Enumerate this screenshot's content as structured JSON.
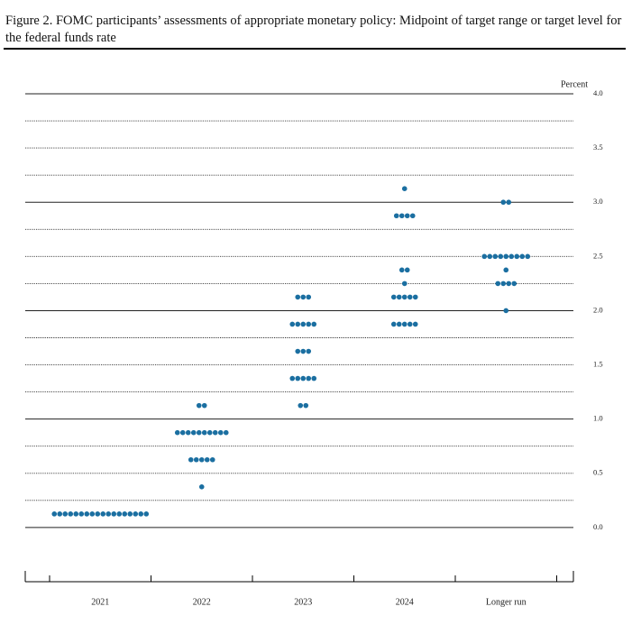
{
  "chart_data": {
    "type": "dot",
    "title": "Figure 2.  FOMC participants’ assessments of appropriate monetary policy: Midpoint of target range or target level for the federal funds rate",
    "y_label": "Percent",
    "categories": [
      "2021",
      "2022",
      "2023",
      "2024",
      "Longer run"
    ],
    "values": [
      [
        0.125,
        0.125,
        0.125,
        0.125,
        0.125,
        0.125,
        0.125,
        0.125,
        0.125,
        0.125,
        0.125,
        0.125,
        0.125,
        0.125,
        0.125,
        0.125,
        0.125,
        0.125
      ],
      [
        1.125,
        1.125,
        0.875,
        0.875,
        0.875,
        0.875,
        0.875,
        0.875,
        0.875,
        0.875,
        0.875,
        0.875,
        0.625,
        0.625,
        0.625,
        0.625,
        0.625,
        0.375
      ],
      [
        2.125,
        2.125,
        2.125,
        1.875,
        1.875,
        1.875,
        1.875,
        1.875,
        1.625,
        1.625,
        1.625,
        1.375,
        1.375,
        1.375,
        1.375,
        1.375,
        1.125,
        1.125
      ],
      [
        3.125,
        2.875,
        2.875,
        2.875,
        2.875,
        2.375,
        2.375,
        2.25,
        2.125,
        2.125,
        2.125,
        2.125,
        2.125,
        1.875,
        1.875,
        1.875,
        1.875,
        1.875
      ],
      [
        3.0,
        3.0,
        2.5,
        2.5,
        2.5,
        2.5,
        2.5,
        2.5,
        2.5,
        2.5,
        2.5,
        2.375,
        2.25,
        2.25,
        2.25,
        2.25,
        2.0
      ]
    ],
    "color": "#1b6fa1",
    "ylim": [
      -0.5,
      4.0
    ],
    "yticks": [
      {
        "value": 0,
        "label": "0.0"
      },
      0.5,
      {
        "value": 1,
        "label": "1.0"
      },
      1.5,
      {
        "value": 2,
        "label": "2.0"
      },
      2.5,
      {
        "value": 3,
        "label": "3.0"
      },
      3.5,
      {
        "value": 4,
        "label": "4.0"
      }
    ],
    "ygrid": [
      0,
      0.25,
      0.5,
      0.75,
      1,
      1.25,
      1.5,
      1.75,
      2,
      2.25,
      2.5,
      2.75,
      3,
      3.25,
      3.5,
      3.75,
      4
    ],
    "grid": true
  }
}
